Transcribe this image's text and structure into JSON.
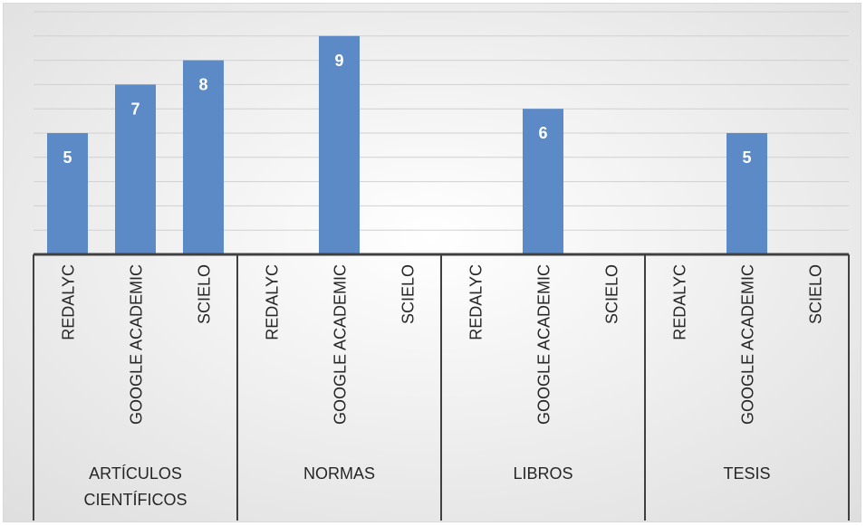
{
  "chart_data": {
    "type": "bar",
    "groups": [
      {
        "label_lines": [
          "ARTÍCULOS",
          "CIENTÍFICOS"
        ],
        "categories": [
          "REDALYC",
          "GOOGLE ACADEMIC",
          "SCIELO"
        ],
        "values": [
          5,
          7,
          8
        ]
      },
      {
        "label_lines": [
          "NORMAS"
        ],
        "categories": [
          "REDALYC",
          "GOOGLE ACADEMIC",
          "SCIELO"
        ],
        "values": [
          null,
          9,
          null
        ]
      },
      {
        "label_lines": [
          "LIBROS"
        ],
        "categories": [
          "REDALYC",
          "GOOGLE ACADEMIC",
          "SCIELO"
        ],
        "values": [
          null,
          6,
          null
        ]
      },
      {
        "label_lines": [
          "TESIS"
        ],
        "categories": [
          "REDALYC",
          "GOOGLE ACADEMIC",
          "SCIELO"
        ],
        "values": [
          null,
          5,
          null
        ]
      }
    ],
    "ylim": [
      0,
      10
    ],
    "grid": true,
    "bar_color": "#5b8ac6",
    "gridline_color": "#d0d0d0",
    "axis_color": "#404040"
  }
}
